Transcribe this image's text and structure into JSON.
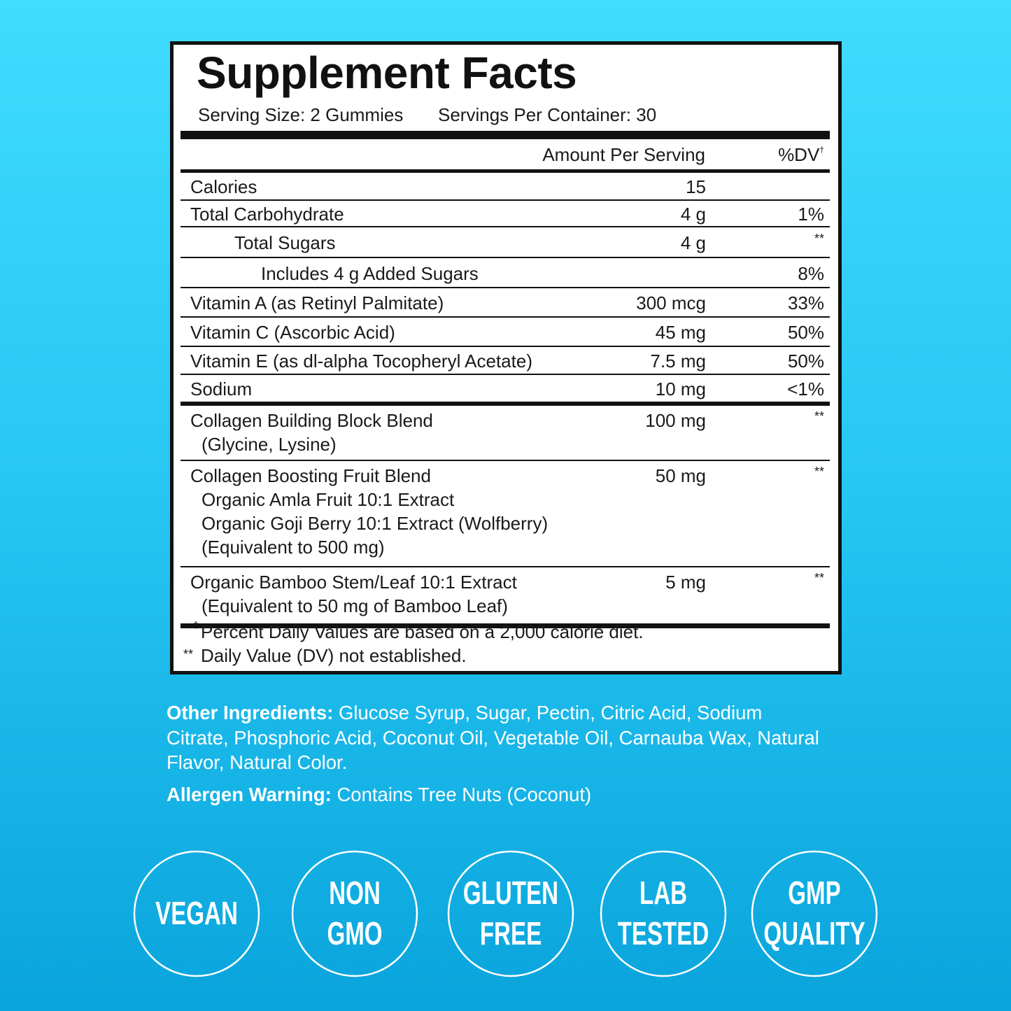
{
  "label": {
    "title": "Supplement Facts",
    "serving_size": "Serving Size: 2 Gummies",
    "servings_per_container": "Servings Per Container: 30",
    "header": {
      "amount": "Amount Per Serving",
      "dv": "%DV",
      "dv_mark": "†"
    },
    "rows": [
      {
        "name": "Calories",
        "amount": "15"
      },
      {
        "name": "Total Carbohydrate",
        "amount": "4 g",
        "dv": "1%"
      },
      {
        "name": "Total Sugars",
        "amount": "4 g",
        "dv": "**"
      },
      {
        "name": "Includes 4 g Added Sugars",
        "dv": "8%"
      },
      {
        "name": "Vitamin A (as Retinyl Palmitate)",
        "amount": "300 mcg",
        "dv": "33%"
      },
      {
        "name": "Vitamin C (Ascorbic Acid)",
        "amount": "45 mg",
        "dv": "50%"
      },
      {
        "name": "Vitamin E (as dl-alpha Tocopheryl Acetate)",
        "amount": "7.5 mg",
        "dv": "50%"
      },
      {
        "name": "Sodium",
        "amount": "10 mg",
        "dv": "<1%"
      },
      {
        "name": "Collagen Building Block Blend",
        "details": [
          "(Glycine, Lysine)"
        ],
        "amount": "100 mg",
        "dv": "**"
      },
      {
        "name": "Collagen Boosting Fruit Blend",
        "details": [
          "Organic Amla Fruit 10:1 Extract",
          "Organic Goji Berry 10:1 Extract (Wolfberry)",
          "(Equivalent to 500 mg)"
        ],
        "amount": "50 mg",
        "dv": "**"
      },
      {
        "name": "Organic Bamboo Stem/Leaf 10:1 Extract",
        "details": [
          "(Equivalent to 50 mg of Bamboo Leaf)"
        ],
        "amount": "5 mg",
        "dv": "**"
      }
    ],
    "footnotes": [
      {
        "mark": "†",
        "text": "Percent Daily Values are based on a 2,000 calorie diet."
      },
      {
        "mark": "**",
        "text": "Daily Value (DV) not established."
      }
    ]
  },
  "other_ingredients": {
    "label": "Other Ingredients:",
    "text": "Glucose Syrup, Sugar, Pectin, Citric Acid, Sodium Citrate, Phosphoric Acid, Coconut Oil, Vegetable Oil, Carnauba Wax, Natural Flavor, Natural Color."
  },
  "allergen_warning": {
    "label": "Allergen Warning:",
    "text": "Contains Tree Nuts (Coconut)"
  },
  "badges": [
    {
      "lines": [
        "VEGAN"
      ]
    },
    {
      "lines": [
        "NON",
        "GMO"
      ]
    },
    {
      "lines": [
        "GLUTEN",
        "FREE"
      ]
    },
    {
      "lines": [
        "LAB",
        "TESTED"
      ]
    },
    {
      "lines": [
        "GMP",
        "QUALITY"
      ]
    }
  ]
}
